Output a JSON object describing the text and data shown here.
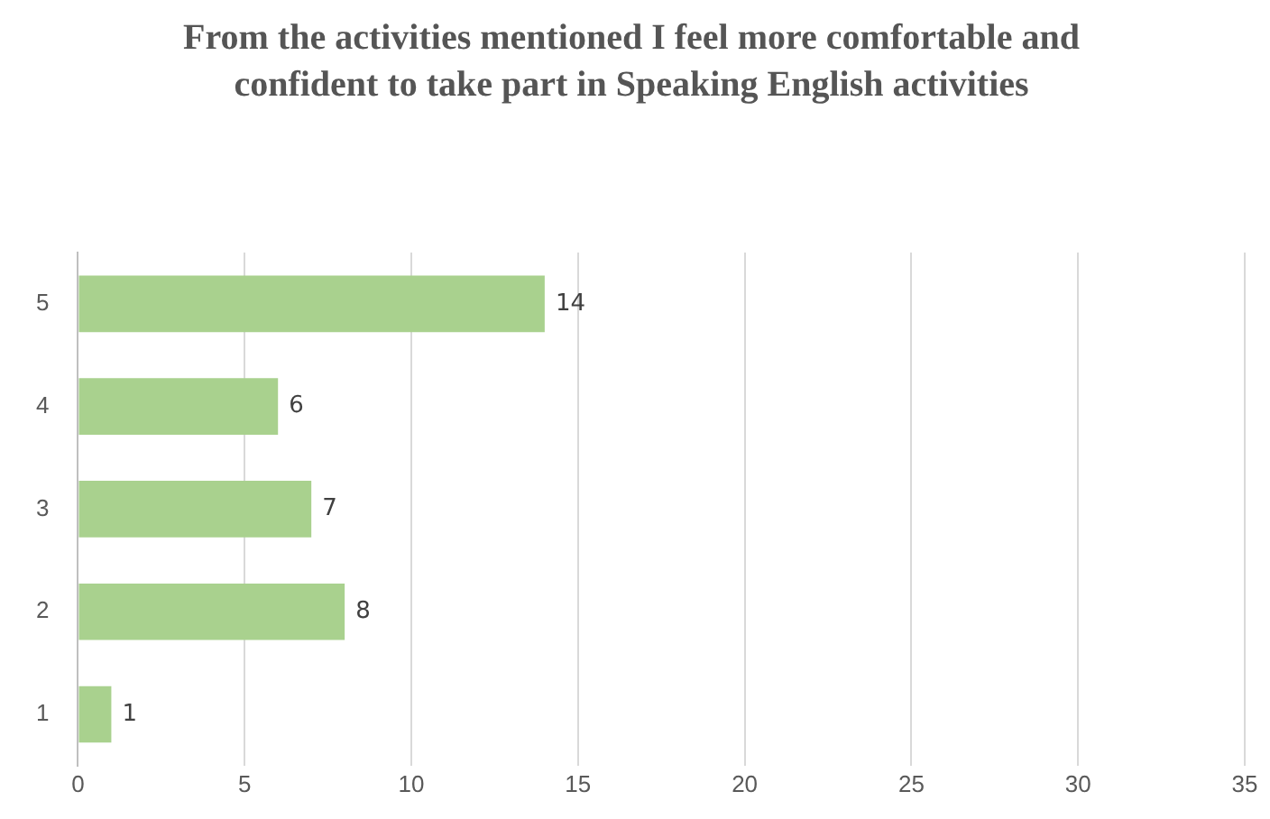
{
  "chart_data": {
    "type": "bar",
    "orientation": "horizontal",
    "title": "From the activities mentioned I feel more comfortable and confident to take part in Speaking English activities",
    "categories": [
      "5",
      "4",
      "3",
      "2",
      "1"
    ],
    "values": [
      14,
      6,
      7,
      8,
      1
    ],
    "color": "#a9d18e",
    "xlim": [
      0,
      35
    ],
    "xticks": [
      0,
      5,
      10,
      15,
      20,
      25,
      30,
      35
    ],
    "grid": "x",
    "data_labels": true,
    "legend": false
  }
}
